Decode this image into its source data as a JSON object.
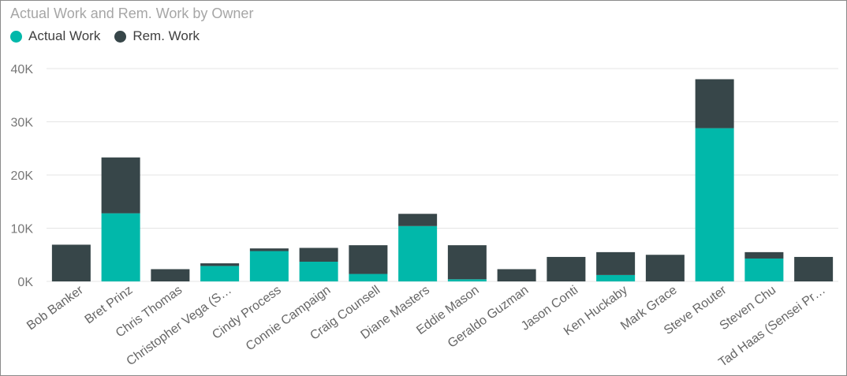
{
  "title": "Actual Work and Rem. Work by Owner",
  "colors": {
    "actual": "#01B8AA",
    "remaining": "#374649",
    "grid": "#e5e5e5"
  },
  "chart_data": {
    "type": "bar",
    "stacked": true,
    "title": "Actual Work and Rem. Work by Owner",
    "xlabel": "",
    "ylabel": "",
    "ylim": [
      0,
      40000
    ],
    "yticks": [
      0,
      10000,
      20000,
      30000,
      40000
    ],
    "ytick_labels": [
      "0K",
      "10K",
      "20K",
      "30K",
      "40K"
    ],
    "grid": true,
    "legend_position": "top-left",
    "categories": [
      "Bob Banker",
      "Bret Prinz",
      "Chris Thomas",
      "Christopher Vega (S…",
      "Cindy Process",
      "Connie Campaign",
      "Craig Counsell",
      "Diane Masters",
      "Eddie Mason",
      "Geraldo Guzman",
      "Jason Conti",
      "Ken Huckaby",
      "Mark Grace",
      "Steve Router",
      "Steven Chu",
      "Tad Haas (Sensei Pr…"
    ],
    "series": [
      {
        "name": "Actual Work",
        "values": [
          0,
          12800,
          0,
          2900,
          5700,
          3700,
          1400,
          10400,
          400,
          0,
          0,
          1200,
          0,
          28800,
          4300,
          0
        ]
      },
      {
        "name": "Rem. Work",
        "values": [
          6900,
          10500,
          2300,
          500,
          500,
          2600,
          5400,
          2300,
          6400,
          2300,
          4600,
          4300,
          5000,
          9200,
          1200,
          4600
        ]
      }
    ]
  }
}
